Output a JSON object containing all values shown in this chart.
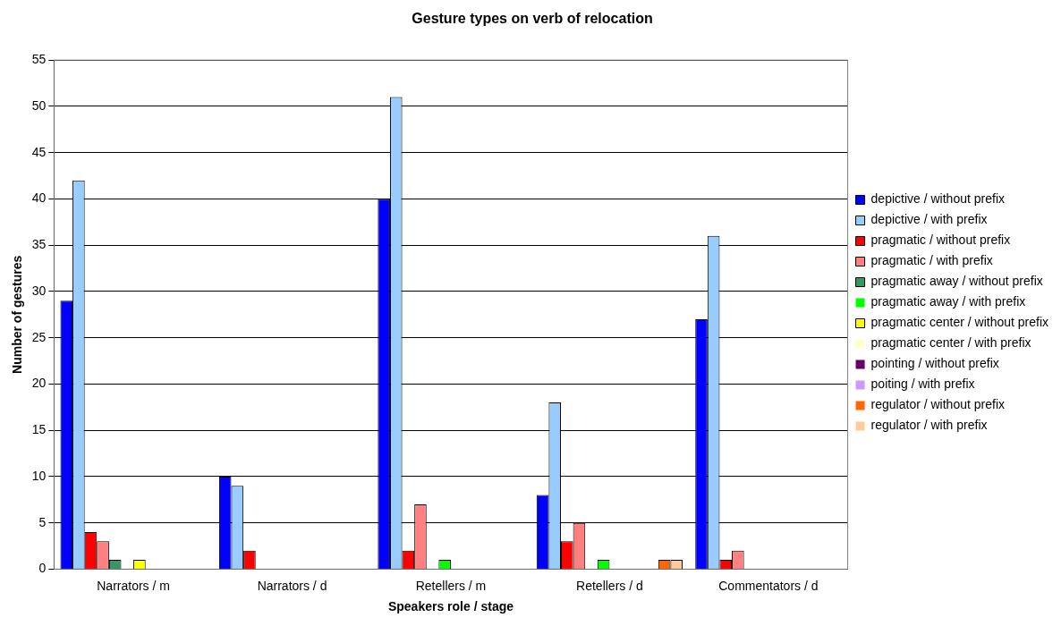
{
  "chart_data": {
    "type": "bar",
    "title": "Gesture types on verb of relocation",
    "xlabel": "Speakers role / stage",
    "ylabel": "Number of gestures",
    "categories": [
      "Narrators / m",
      "Narrators / d",
      "Retellers / m",
      "Retellers / d",
      "Commentators / d"
    ],
    "series": [
      {
        "name": "depictive / without prefix",
        "color": "#0000ff",
        "values": [
          29,
          10,
          40,
          8,
          27
        ]
      },
      {
        "name": "depictive / with prefix",
        "color": "#99ccff",
        "values": [
          42,
          9,
          51,
          18,
          36
        ]
      },
      {
        "name": "pragmatic / without prefix",
        "color": "#ff0000",
        "values": [
          4,
          2,
          2,
          3,
          1
        ]
      },
      {
        "name": "pragmatic / with prefix",
        "color": "#ff8080",
        "values": [
          3,
          0,
          7,
          5,
          2
        ]
      },
      {
        "name": "pragmatic away / without prefix",
        "color": "#339966",
        "values": [
          1,
          0,
          0,
          0,
          0
        ]
      },
      {
        "name": "pragmatic away / with prefix",
        "color": "#00ff00",
        "values": [
          0,
          0,
          1,
          1,
          0
        ]
      },
      {
        "name": "pragmatic center / without prefix",
        "color": "#ffff00",
        "values": [
          1,
          0,
          0,
          0,
          0
        ]
      },
      {
        "name": "pragmatic center / with prefix",
        "color": "#ffffcc",
        "values": [
          0,
          0,
          0,
          0,
          0
        ]
      },
      {
        "name": "pointing / without prefix",
        "color": "#660066",
        "values": [
          0,
          0,
          0,
          0,
          0
        ]
      },
      {
        "name": "poiting / with prefix",
        "color": "#cc99ff",
        "values": [
          0,
          0,
          0,
          0,
          0
        ]
      },
      {
        "name": "regulator / without prefix",
        "color": "#ff6600",
        "values": [
          0,
          0,
          0,
          1,
          0
        ]
      },
      {
        "name": "regulator / with prefix",
        "color": "#ffcc99",
        "values": [
          0,
          0,
          0,
          1,
          0
        ]
      }
    ],
    "ylim": [
      0,
      55
    ],
    "yticks": [
      0,
      5,
      10,
      15,
      20,
      25,
      30,
      35,
      40,
      45,
      50,
      55
    ],
    "grid": "y",
    "legend": "right"
  }
}
